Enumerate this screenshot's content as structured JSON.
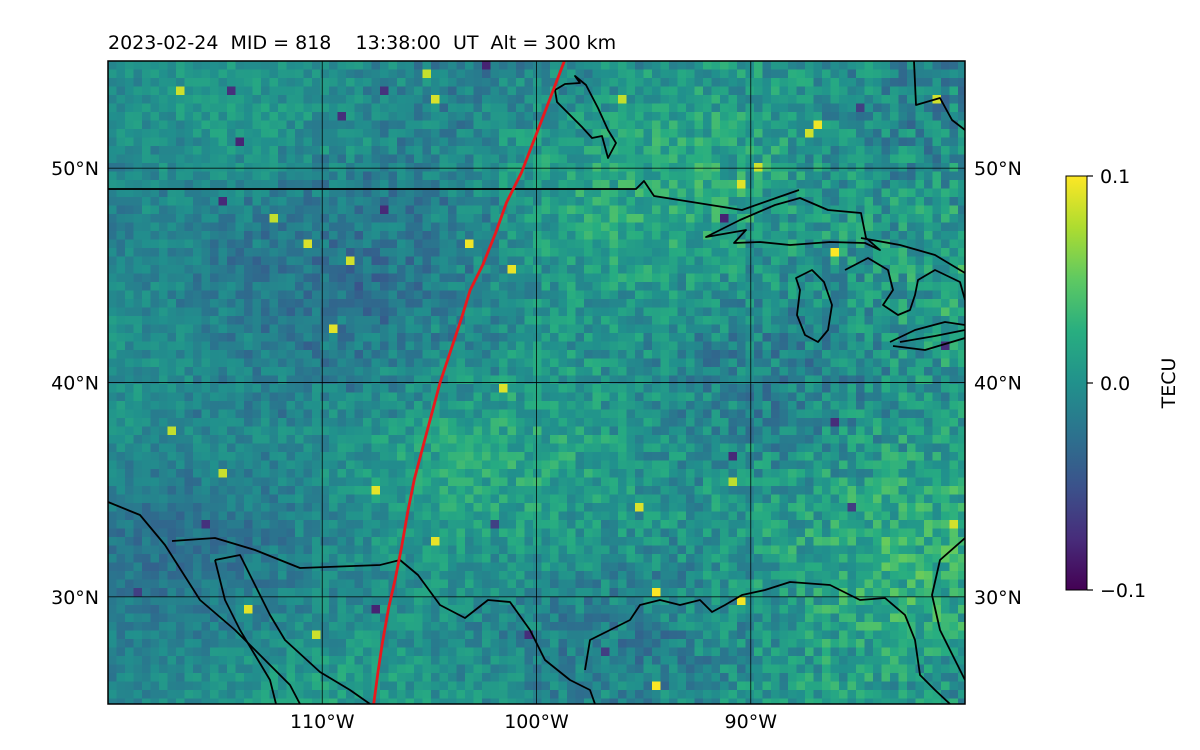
{
  "title": "2023-02-24  MID = 818    13:38:00  UT  Alt = 300 km",
  "map": {
    "lon_range": [
      -120,
      -80
    ],
    "lat_range": [
      25,
      55
    ],
    "xticks": [
      {
        "value": -110,
        "label": "110°W"
      },
      {
        "value": -100,
        "label": "100°W"
      },
      {
        "value": -90,
        "label": "90°W"
      }
    ],
    "yticks": [
      {
        "value": 50,
        "label": "50°N"
      },
      {
        "value": 40,
        "label": "40°N"
      },
      {
        "value": 30,
        "label": "30°N"
      }
    ],
    "grid": true,
    "colormap": "viridis",
    "track_color": "#e8191e",
    "track": [
      [
        -98.7,
        55.0
      ],
      [
        -99.5,
        52.9
      ],
      [
        -100.7,
        49.8
      ],
      [
        -101.4,
        48.4
      ],
      [
        -101.9,
        47.0
      ],
      [
        -102.5,
        45.5
      ],
      [
        -103.1,
        44.3
      ],
      [
        -103.5,
        43.0
      ],
      [
        -104.0,
        41.5
      ],
      [
        -104.5,
        40.0
      ],
      [
        -104.9,
        38.5
      ],
      [
        -105.3,
        37.0
      ],
      [
        -105.7,
        35.5
      ],
      [
        -106.0,
        34.0
      ],
      [
        -106.3,
        32.3
      ],
      [
        -106.6,
        30.8
      ],
      [
        -106.9,
        29.5
      ],
      [
        -107.2,
        27.8
      ],
      [
        -107.4,
        26.5
      ],
      [
        -107.6,
        25.0
      ]
    ]
  },
  "colorbar": {
    "label": "TECU",
    "range": [
      -0.1,
      0.1
    ],
    "ticks": [
      {
        "value": 0.1,
        "label": "0.1"
      },
      {
        "value": 0.0,
        "label": "0.0"
      },
      {
        "value": -0.1,
        "label": "−0.1"
      }
    ]
  }
}
